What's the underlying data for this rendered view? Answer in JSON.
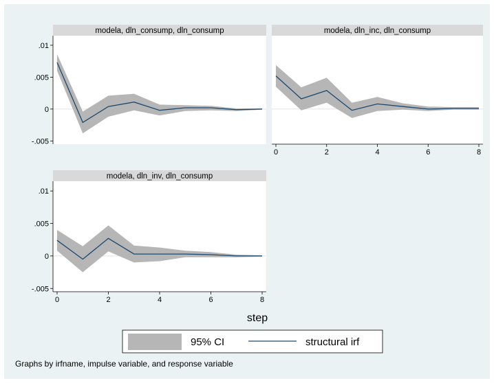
{
  "chart_data": {
    "type": "line",
    "xlabel": "step",
    "x": [
      0,
      1,
      2,
      3,
      4,
      5,
      6,
      7,
      8
    ],
    "xticks": [
      0,
      2,
      4,
      6,
      8
    ],
    "ylim": [
      -0.0055,
      0.0115
    ],
    "yticks": [
      {
        "value": -0.005,
        "label": "-.005"
      },
      {
        "value": 0,
        "label": "0"
      },
      {
        "value": 0.005,
        "label": ".005"
      },
      {
        "value": 0.01,
        "label": ".01"
      }
    ],
    "grid": false,
    "legend": {
      "placement": "bottom",
      "items": [
        {
          "label": "95% CI",
          "kind": "band"
        },
        {
          "label": "structural irf",
          "kind": "line"
        }
      ]
    },
    "note": "Graphs by irfname, impulse variable, and response variable",
    "colors": {
      "band": "#b6b6b6",
      "line": "#1a476f",
      "background": "#eaf2f3",
      "title_bar": "#d9d9d9"
    },
    "panels": [
      {
        "title": "modela, dln_consump, dln_consump",
        "irf": [
          0.0073,
          -0.0021,
          0.0004,
          0.0011,
          -0.0002,
          0.0002,
          0.0002,
          -0.0001,
          0.0
        ],
        "lower": [
          0.006,
          -0.0038,
          -0.0012,
          -0.0002,
          -0.001,
          -0.0003,
          -0.0002,
          -0.0003,
          -0.0001
        ],
        "upper": [
          0.0086,
          -0.0004,
          0.0021,
          0.0024,
          0.0007,
          0.0006,
          0.0005,
          0.0001,
          0.0001
        ]
      },
      {
        "title": "modela, dln_inc, dln_consump",
        "irf": [
          0.0052,
          0.0016,
          0.0029,
          -0.0002,
          0.0008,
          0.0004,
          0.0,
          0.0001,
          0.0001
        ],
        "lower": [
          0.0035,
          -0.0002,
          0.001,
          -0.0014,
          -0.0003,
          -0.0001,
          -0.0003,
          -0.0001,
          -0.0001
        ],
        "upper": [
          0.0069,
          0.0034,
          0.0049,
          0.001,
          0.0019,
          0.0009,
          0.0004,
          0.0003,
          0.0003
        ]
      },
      {
        "title": "modela, dln_inv, dln_consump",
        "irf": [
          0.0024,
          -0.0005,
          0.0027,
          0.0003,
          0.0003,
          0.0003,
          0.0002,
          0.0,
          0.0
        ],
        "lower": [
          0.0008,
          -0.0025,
          0.0007,
          -0.001,
          -0.0008,
          -0.0002,
          -0.0002,
          -0.0002,
          -0.0001
        ],
        "upper": [
          0.004,
          0.0015,
          0.0047,
          0.0016,
          0.0013,
          0.0008,
          0.0006,
          0.0002,
          0.0001
        ]
      }
    ]
  }
}
